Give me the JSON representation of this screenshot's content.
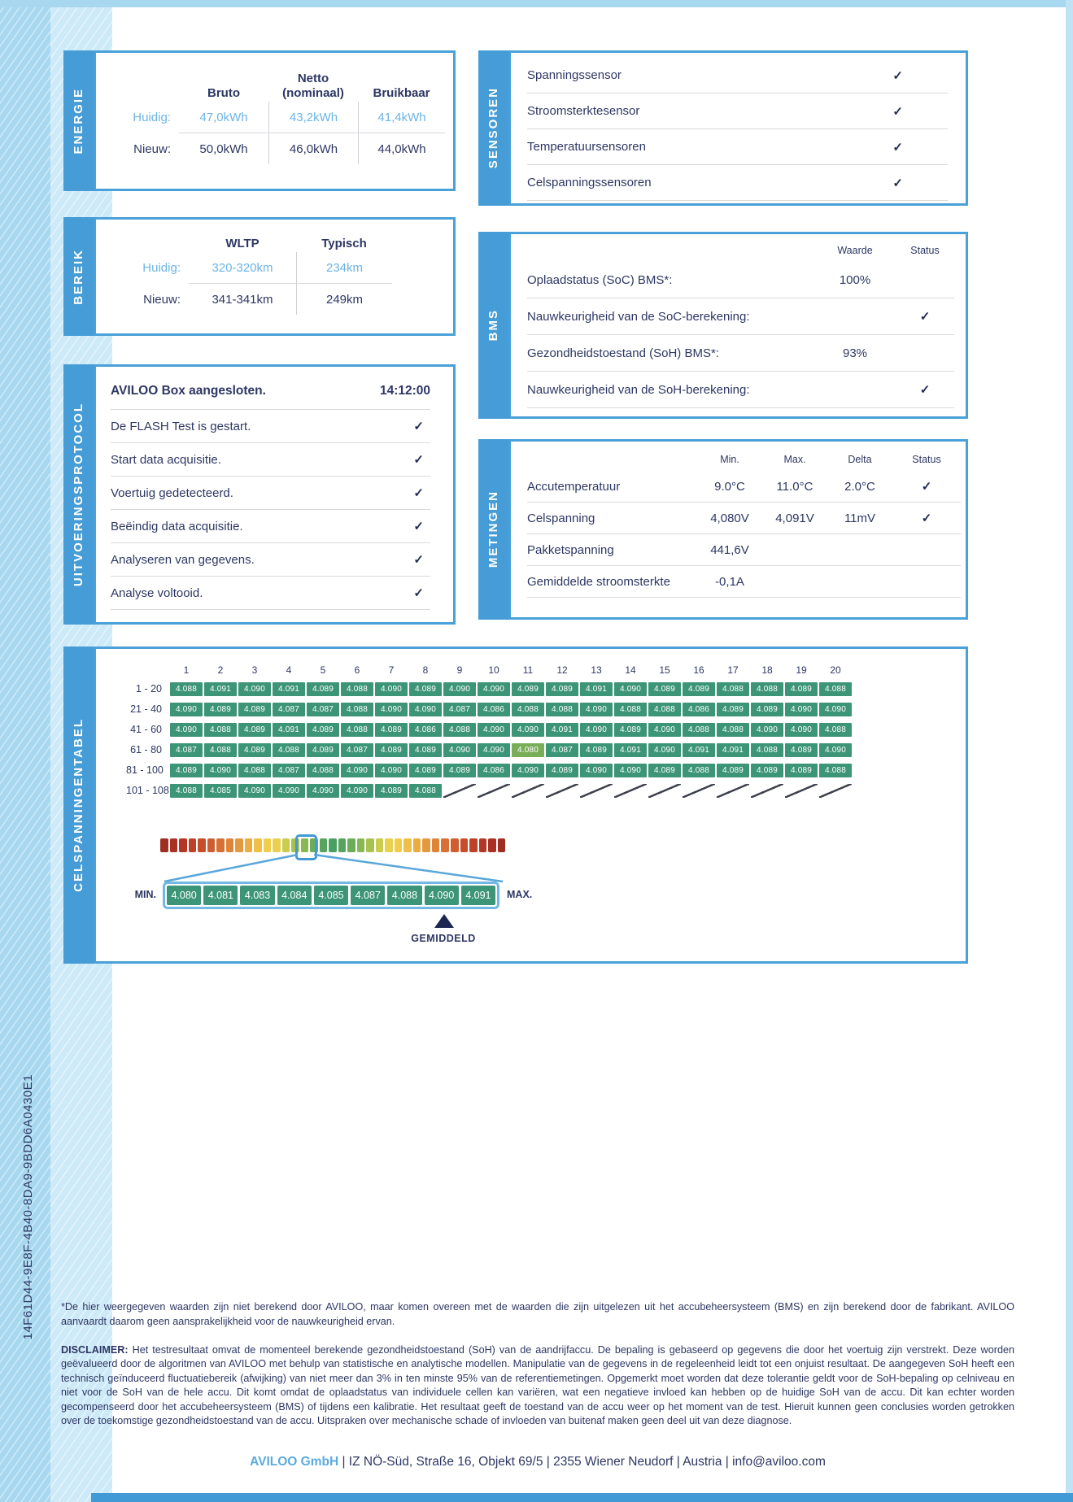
{
  "colors": {
    "accent_blue": "#459cd7",
    "navy": "#2d3763",
    "value_blue": "#6db4e6",
    "cell_green": "#3d9577",
    "min_cell_green": "#79ad58"
  },
  "icons": {
    "check": "✓"
  },
  "energie": {
    "tab": "ENERGIE",
    "headers": {
      "col1": "Bruto",
      "col2_line1": "Netto",
      "col2_line2": "(nominaal)",
      "col3": "Bruikbaar"
    },
    "rows": [
      {
        "label": "Huidig:",
        "v1": "47,0kWh",
        "v2": "43,2kWh",
        "v3": "41,4kWh"
      },
      {
        "label": "Nieuw:",
        "v1": "50,0kWh",
        "v2": "46,0kWh",
        "v3": "44,0kWh"
      }
    ]
  },
  "sensoren": {
    "tab": "SENSOREN",
    "items": [
      "Spanningssensor",
      "Stroomsterktesensor",
      "Temperatuursensoren",
      "Celspanningssensoren"
    ]
  },
  "bereik": {
    "tab": "BEREIK",
    "headers": {
      "col1": "WLTP",
      "col2": "Typisch"
    },
    "rows": [
      {
        "label": "Huidig:",
        "v1": "320-320km",
        "v2": "234km"
      },
      {
        "label": "Nieuw:",
        "v1": "341-341km",
        "v2": "249km"
      }
    ]
  },
  "bms": {
    "tab": "BMS",
    "headers": [
      "Waarde",
      "Status"
    ],
    "rows": [
      {
        "label": "Oplaadstatus (SoC) BMS*:",
        "waarde": "100%",
        "check": false
      },
      {
        "label": "Nauwkeurigheid van de SoC-berekening:",
        "waarde": "",
        "check": true
      },
      {
        "label": "Gezondheidstoestand (SoH) BMS*:",
        "waarde": "93%",
        "check": false
      },
      {
        "label": "Nauwkeurigheid van de SoH-berekening:",
        "waarde": "",
        "check": true
      }
    ]
  },
  "protocol": {
    "tab": "UITVOERINGSPROTOCOL",
    "first": {
      "label": "AVILOO Box aangesloten.",
      "time": "14:12:00"
    },
    "steps": [
      "De FLASH Test is gestart.",
      "Start data acquisitie.",
      "Voertuig gedetecteerd.",
      "Beëindig data acquisitie.",
      "Analyseren van gegevens.",
      "Analyse voltooid."
    ]
  },
  "metingen": {
    "tab": "METINGEN",
    "headers": [
      "Min.",
      "Max.",
      "Delta",
      "Status"
    ],
    "rows": [
      {
        "label": "Accutemperatuur",
        "min": "9.0°C",
        "max": "11.0°C",
        "delta": "2.0°C",
        "check": true
      },
      {
        "label": "Celspanning",
        "min": "4,080V",
        "max": "4,091V",
        "delta": "11mV",
        "check": true
      },
      {
        "label": "Pakketspanning",
        "min": "441,6V",
        "max": "",
        "delta": "",
        "check": false
      },
      {
        "label": "Gemiddelde stroomsterkte",
        "min": "-0,1A",
        "max": "",
        "delta": "",
        "check": false
      }
    ]
  },
  "celltable": {
    "tab": "CELSPANNINGENTABEL",
    "columns": [
      "1",
      "2",
      "3",
      "4",
      "5",
      "6",
      "7",
      "8",
      "9",
      "10",
      "11",
      "12",
      "13",
      "14",
      "15",
      "16",
      "17",
      "18",
      "19",
      "20"
    ],
    "rows": [
      {
        "label": "1 - 20",
        "values": [
          "4.088",
          "4.091",
          "4.090",
          "4.091",
          "4.089",
          "4.088",
          "4.090",
          "4.089",
          "4.090",
          "4.090",
          "4.089",
          "4.089",
          "4.091",
          "4.090",
          "4.089",
          "4.089",
          "4.088",
          "4.088",
          "4.089",
          "4.088"
        ]
      },
      {
        "label": "21 - 40",
        "values": [
          "4.090",
          "4.089",
          "4.089",
          "4.087",
          "4.087",
          "4.088",
          "4.090",
          "4.090",
          "4.087",
          "4.086",
          "4.088",
          "4.088",
          "4.090",
          "4.088",
          "4.088",
          "4.086",
          "4.089",
          "4.089",
          "4.090",
          "4.090"
        ]
      },
      {
        "label": "41 - 60",
        "values": [
          "4.090",
          "4.088",
          "4.089",
          "4.091",
          "4.089",
          "4.088",
          "4.089",
          "4.086",
          "4.088",
          "4.090",
          "4.090",
          "4.091",
          "4.090",
          "4.089",
          "4.090",
          "4.088",
          "4.088",
          "4.090",
          "4.090",
          "4.088"
        ]
      },
      {
        "label": "61 - 80",
        "values": [
          "4.087",
          "4.088",
          "4.089",
          "4.088",
          "4.089",
          "4.087",
          "4.089",
          "4.089",
          "4.090",
          "4.090",
          "4.080",
          "4.087",
          "4.089",
          "4.091",
          "4.090",
          "4.091",
          "4.091",
          "4.088",
          "4.089",
          "4.090"
        ],
        "highlight_col": 11
      },
      {
        "label": "81 - 100",
        "values": [
          "4.089",
          "4.090",
          "4.088",
          "4.087",
          "4.088",
          "4.090",
          "4.090",
          "4.089",
          "4.089",
          "4.086",
          "4.090",
          "4.089",
          "4.090",
          "4.090",
          "4.089",
          "4.088",
          "4.089",
          "4.089",
          "4.089",
          "4.088"
        ]
      },
      {
        "label": "101 - 108",
        "values": [
          "4.088",
          "4.085",
          "4.090",
          "4.090",
          "4.090",
          "4.090",
          "4.089",
          "4.088"
        ]
      }
    ],
    "min_value_cell": {
      "row_label": "61 - 80",
      "column": 11,
      "value": "4.080"
    }
  },
  "scale": {
    "min_label": "MIN.",
    "max_label": "MAX.",
    "avg_label": "GEMIDDELD",
    "zoom_values": [
      "4.080",
      "4.081",
      "4.083",
      "4.084",
      "4.085",
      "4.087",
      "4.088",
      "4.090",
      "4.091"
    ],
    "avg_points_to": "4.090",
    "highlight_index": 15,
    "bar_colors": [
      "#9e2d22",
      "#a93124",
      "#b43726",
      "#bd4128",
      "#c64e2b",
      "#ce5e30",
      "#d67034",
      "#dd8438",
      "#e3993e",
      "#e9ad44",
      "#eebf49",
      "#f1cd4d",
      "#e9d04e",
      "#c9cc4d",
      "#a8c24f",
      "#88b754",
      "#6cad59",
      "#57a45e",
      "#4aa063",
      "#57a45e",
      "#6cad59",
      "#88b754",
      "#a8c24f",
      "#c9cc4d",
      "#e9d04e",
      "#f1cd4d",
      "#eebf49",
      "#e9ad44",
      "#e3993e",
      "#dd8438",
      "#d67034",
      "#ce5e30",
      "#c64e2b",
      "#bd4128",
      "#b43726",
      "#a93124",
      "#9e2d22"
    ]
  },
  "report": {
    "serial": "14F61D44-9E8F-4B40-8DA9-9BDD6A0430E1",
    "footnote": "*De hier weergegeven waarden zijn niet berekend door AVILOO, maar komen overeen met de waarden die zijn uitgelezen uit het accubeheersysteem (BMS) en zijn berekend door de fabrikant. AVILOO aanvaardt daarom geen aansprakelijkheid voor de nauwkeurigheid ervan.",
    "disclaimer_label": "DISCLAIMER:",
    "disclaimer_text": " Het testresultaat omvat de momenteel berekende gezondheidstoestand (SoH) van de aandrijfaccu. De bepaling is gebaseerd op gegevens die door het voertuig zijn verstrekt. Deze worden geëvalueerd door de algoritmen van AVILOO met behulp van statistische en analytische modellen. Manipulatie van de gegevens in de regeleenheid leidt tot een onjuist resultaat. De aangegeven SoH heeft een technisch geïnduceerd fluctuatiebereik (afwijking) van niet meer dan 3% in ten minste 95% van de referentiemetingen. Opgemerkt moet worden dat deze tolerantie geldt voor de SoH-bepaling op celniveau en niet voor de SoH van de hele accu. Dit komt omdat de oplaadstatus van individuele cellen kan variëren, wat een negatieve invloed kan hebben op de huidige SoH van de accu. Dit kan echter worden gecompenseerd door het accubeheersysteem (BMS) of tijdens een kalibratie. Het resultaat geeft de toestand van de accu weer op het moment van de test. Hieruit kunnen geen conclusies worden getrokken over de toekomstige gezondheidstoestand van de accu. Uitspraken over mechanische schade of invloeden van buitenaf maken geen deel uit van deze diagnose.",
    "footer_company": "AVILOO GmbH",
    "footer_rest": "  |  IZ NÖ-Süd, Straße 16, Objekt 69/5  |  2355 Wiener Neudorf  |  Austria  |  info@aviloo.com"
  }
}
